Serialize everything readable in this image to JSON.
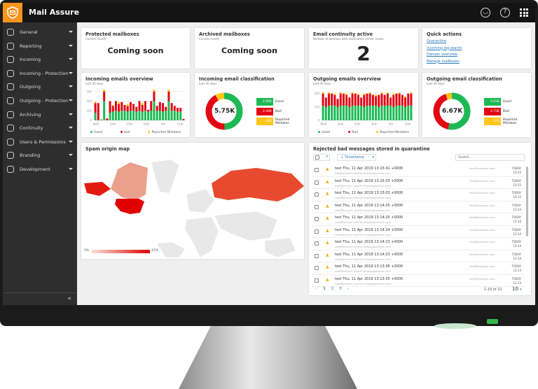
{
  "app": {
    "title": "Mail Assure"
  },
  "sidebar": {
    "items": [
      {
        "label": "General",
        "icon": "globe-icon"
      },
      {
        "label": "Reporting",
        "icon": "bar-chart-icon"
      },
      {
        "label": "Incoming",
        "icon": "mail-in-icon"
      },
      {
        "label": "Incoming - Protection",
        "icon": "shield-gear-icon"
      },
      {
        "label": "Outgoing",
        "icon": "mail-out-icon"
      },
      {
        "label": "Outgoing - Protection",
        "icon": "shield-gear-icon"
      },
      {
        "label": "Archiving",
        "icon": "archive-icon"
      },
      {
        "label": "Continuity",
        "icon": "history-icon"
      },
      {
        "label": "Users & Permissions",
        "icon": "users-icon"
      },
      {
        "label": "Branding",
        "icon": "tag-icon"
      },
      {
        "label": "Development",
        "icon": "gear-icon"
      }
    ],
    "collapse": "«"
  },
  "cards": {
    "protected": {
      "title": "Protected mailboxes",
      "subtitle": "Current month",
      "value": "Coming soon"
    },
    "archived": {
      "title": "Archived mailboxes",
      "subtitle": "Current month",
      "value": "Coming soon"
    },
    "continuity": {
      "title": "Email continuity active",
      "subtitle": "Number of domains with destination server issues",
      "value": "2"
    },
    "quick": {
      "title": "Quick actions",
      "links": [
        "Quarantine",
        "Incoming log search",
        "Domain overview",
        "Manage mailboxes"
      ]
    }
  },
  "legend": {
    "good": "Good",
    "bad": "Bad",
    "mistakes": "Reported Mistakes",
    "mistakes_short": "Reported Mistakes"
  },
  "colors": {
    "good": "#1db954",
    "bad": "#e30613",
    "mistakes": "#ffc61a"
  },
  "chart_data": [
    {
      "type": "bar",
      "title": "Incoming emails overview",
      "subtitle": "Last 30 days",
      "stacked": true,
      "yticks": [
        "0",
        "100",
        "200",
        "300"
      ],
      "ylim": [
        0,
        320
      ],
      "xticks": [
        "MAR",
        "20th",
        "25th",
        "30th",
        "5th",
        "10th"
      ],
      "series": [
        {
          "name": "Good",
          "values": [
            80,
            0,
            10,
            200,
            0,
            80,
            90,
            100,
            90,
            100,
            100,
            90,
            100,
            100,
            90,
            100,
            90,
            100,
            90,
            100,
            200,
            100,
            100,
            90,
            100,
            200,
            100,
            100,
            90,
            90,
            0
          ]
        },
        {
          "name": "Bad",
          "values": [
            100,
            180,
            0,
            100,
            20,
            120,
            60,
            100,
            80,
            90,
            60,
            60,
            90,
            70,
            50,
            100,
            70,
            100,
            20,
            100,
            100,
            50,
            90,
            90,
            40,
            100,
            80,
            50,
            40,
            40,
            15
          ]
        },
        {
          "name": "Reported Mistakes",
          "values": [
            15,
            0,
            0,
            20,
            0,
            0,
            10,
            0,
            20,
            0,
            0,
            20,
            0,
            0,
            0,
            0,
            20,
            0,
            0,
            0,
            20,
            0,
            0,
            0,
            0,
            20,
            0,
            0,
            0,
            0,
            0
          ]
        }
      ]
    },
    {
      "type": "pie",
      "title": "Incoming email classification",
      "subtitle": "Last 30 days",
      "total": "5.75K",
      "slices": [
        {
          "name": "Good",
          "value": 2.85,
          "label": "2.85K"
        },
        {
          "name": "Bad",
          "value": 2.44,
          "label": "2.44K"
        },
        {
          "name": "Reported Mistakes",
          "value": 0.45,
          "label": "450"
        }
      ]
    },
    {
      "type": "bar",
      "title": "Outgoing emails overview",
      "subtitle": "Last 30 days",
      "stacked": true,
      "yticks": [
        "0",
        "100",
        "200"
      ],
      "ylim": [
        0,
        230
      ],
      "xticks": [
        "MAR",
        "20th",
        "25th",
        "30th",
        "5th",
        "10th"
      ],
      "series": [
        {
          "name": "Good",
          "values": [
            110,
            100,
            110,
            110,
            110,
            100,
            110,
            110,
            110,
            100,
            110,
            110,
            110,
            110,
            100,
            110,
            110,
            110,
            110,
            100,
            110,
            110,
            110,
            110,
            100,
            110,
            110,
            110,
            100,
            110,
            110
          ]
        },
        {
          "name": "Bad",
          "values": [
            90,
            70,
            90,
            90,
            80,
            60,
            90,
            90,
            80,
            70,
            90,
            90,
            80,
            60,
            90,
            90,
            90,
            80,
            70,
            90,
            90,
            80,
            90,
            60,
            90,
            90,
            90,
            80,
            70,
            90,
            90
          ]
        },
        {
          "name": "Reported Mistakes",
          "values": [
            10,
            0,
            10,
            0,
            10,
            0,
            10,
            0,
            10,
            0,
            10,
            0,
            10,
            0,
            10,
            0,
            10,
            0,
            10,
            0,
            10,
            0,
            10,
            0,
            10,
            0,
            10,
            0,
            10,
            0,
            10
          ]
        }
      ]
    },
    {
      "type": "pie",
      "title": "Outgoing email classification",
      "subtitle": "Last 30 days",
      "total": "6.67K",
      "slices": [
        {
          "name": "Good",
          "value": 3.55,
          "label": "3.55K"
        },
        {
          "name": "Bad",
          "value": 2.75,
          "label": "2.75K"
        },
        {
          "name": "Reported Mistakes",
          "value": 0.37,
          "label": "370"
        }
      ]
    }
  ],
  "map": {
    "title": "Spam origin map",
    "min": "5%",
    "max": "42%"
  },
  "quarantine": {
    "title": "Rejected bad messages stored in quarantine",
    "sort": "Timestamp",
    "search_placeholder": "Search...",
    "rows": [
      {
        "subject": "test Thu, 11 Apr 2019 13:15:41 +0000",
        "from": "root@server1.test35.simplyspamfree.com",
        "to": "test@example.com",
        "day": "TODAY",
        "time": "13:15"
      },
      {
        "subject": "test Thu, 11 Apr 2019 13:15:03 +0000",
        "from": "root@server1.test35.simplyspamfree.com",
        "to": "test@example.com",
        "day": "TODAY",
        "time": "13:15"
      },
      {
        "subject": "test Thu, 11 Apr 2019 13:15:03 +0000",
        "from": "root@server1.test35.simplyspamfree.com",
        "to": "test@example.com",
        "day": "TODAY",
        "time": "13:15"
      },
      {
        "subject": "test Thu, 11 Apr 2019 13:14:25 +0000",
        "from": "root@server1.test35.simplyspamfree.com",
        "to": "test@example.com",
        "day": "TODAY",
        "time": "13:14"
      },
      {
        "subject": "test Thu, 11 Apr 2019 13:14:25 +0000",
        "from": "root@server1.test35.simplyspamfree.com",
        "to": "test@example.com",
        "day": "TODAY",
        "time": "13:14"
      },
      {
        "subject": "test Thu, 11 Apr 2019 13:14:24 +0000",
        "from": "root@server1.test35.simplyspamfree.com",
        "to": "test@example.com",
        "day": "TODAY",
        "time": "13:14"
      },
      {
        "subject": "test Thu, 11 Apr 2019 13:14:23 +0000",
        "from": "root@server1.test35.simplyspamfree.com",
        "to": "test@example.com",
        "day": "TODAY",
        "time": "13:14"
      },
      {
        "subject": "test Thu, 11 Apr 2019 13:14:23 +0000",
        "from": "root@server1.test35.simplyspamfree.com",
        "to": "test@example.com",
        "day": "TODAY",
        "time": "13:14"
      },
      {
        "subject": "test Thu, 11 Apr 2019 13:13:36 +0000",
        "from": "root@server1.test35.simplyspamfree.com",
        "to": "test@example.com",
        "day": "TODAY",
        "time": "13:13"
      },
      {
        "subject": "test Thu, 11 Apr 2019 13:13:35 +0000",
        "from": "root@server1.test35.simplyspamfree.com",
        "to": "test@example.com",
        "day": "TODAY",
        "time": "13:13"
      }
    ],
    "pages": [
      "1",
      "2",
      "3"
    ],
    "range": "1-10 of 21",
    "per_page": "10"
  }
}
